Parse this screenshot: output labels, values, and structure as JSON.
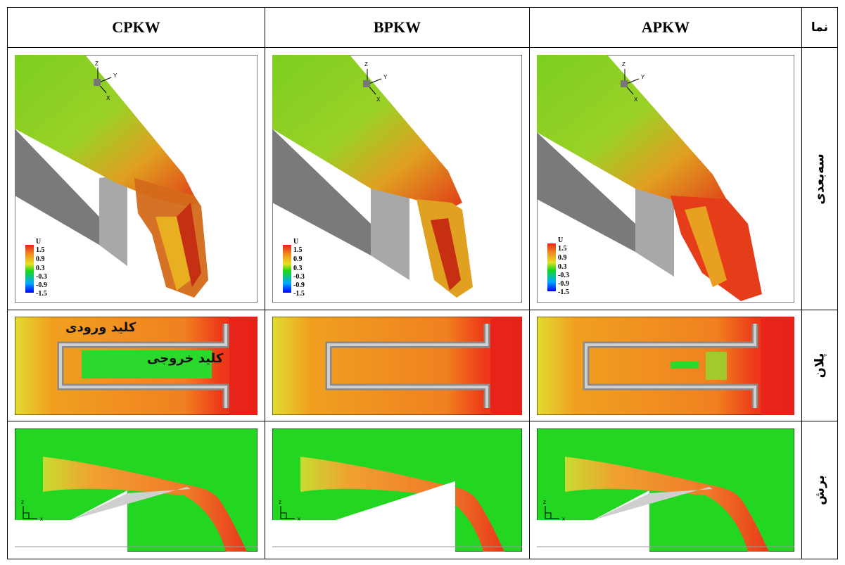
{
  "header": {
    "view_label": "نما",
    "col_c": "CPKW",
    "col_b": "BPKW",
    "col_a": "APKW"
  },
  "rows": {
    "three_d": "سه‌بعدی",
    "plan": "پلان",
    "section": "برش"
  },
  "annotations": {
    "inlet_key": "کلید ورودی",
    "outlet_key": "کلید خروجی"
  },
  "legend": {
    "variable": "U",
    "ticks": [
      "1.5",
      "0.9",
      "0.3",
      "-0.3",
      "-0.9",
      "-1.5"
    ]
  },
  "axes": {
    "z": "Z",
    "y": "Y",
    "x": "X",
    "z_lower": "z",
    "x_lower": "x"
  },
  "colors": {
    "high": "#e8221a",
    "mid_high": "#f09020",
    "mid": "#e6e020",
    "low_mid": "#18d818",
    "low": "#00aaff",
    "lowest": "#0000ff",
    "wall": "#b0b0b0"
  }
}
